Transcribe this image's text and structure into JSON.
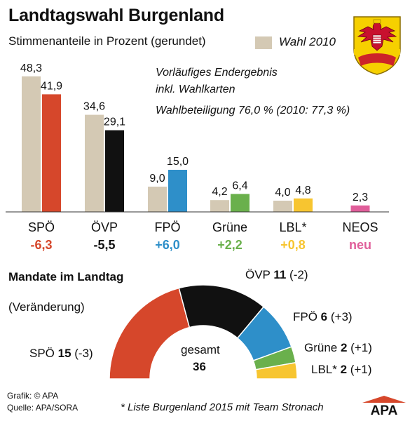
{
  "header": {
    "title": "Landtagswahl Burgenland",
    "subtitle": "Stimmenanteile in Prozent (gerundet)",
    "legend_2010": "Wahl 2010",
    "note_line1": "Vorläufiges Endergebnis",
    "note_line2": "inkl. Wahlkarten",
    "note_line3": "Wahlbeteiligung 76,0 % (2010: 77,3 %)"
  },
  "chart_data": [
    {
      "type": "bar",
      "title": "Landtagswahl Burgenland",
      "subtitle": "Stimmenanteile in Prozent (gerundet)",
      "categories": [
        "SPÖ",
        "ÖVP",
        "FPÖ",
        "Grüne",
        "LBL*",
        "NEOS"
      ],
      "series": [
        {
          "name": "Wahl 2010",
          "values": [
            48.3,
            34.6,
            9.0,
            4.2,
            4.0,
            null
          ],
          "labels": [
            "48,3",
            "34,6",
            "9,0",
            "4,2",
            "4,0",
            ""
          ],
          "color": "#d4c9b4"
        },
        {
          "values": [
            41.9,
            29.1,
            15.0,
            6.4,
            4.8,
            2.3
          ],
          "labels": [
            "41,9",
            "29,1",
            "15,0",
            "6,4",
            "4,8",
            "2,3"
          ],
          "colors": [
            "#d6472b",
            "#111111",
            "#2e8fc9",
            "#6ab04c",
            "#f7c530",
            "#e05e9a"
          ]
        }
      ],
      "changes": [
        "-6,3",
        "-5,5",
        "+6,0",
        "+2,2",
        "+0,8",
        "neu"
      ],
      "change_colors": [
        "#d6472b",
        "#111111",
        "#2e8fc9",
        "#6ab04c",
        "#f7c530",
        "#e05e9a"
      ],
      "ylim": [
        0,
        50
      ],
      "grid": false
    },
    {
      "type": "pie",
      "title": "Mandate im Landtag",
      "subtitle": "(Veränderung)",
      "total_label": "gesamt",
      "total": "36",
      "slices": [
        {
          "name": "SPÖ",
          "value": 15,
          "change": "(-3)",
          "color": "#d6472b"
        },
        {
          "name": "ÖVP",
          "value": 11,
          "change": "(-2)",
          "color": "#111111"
        },
        {
          "name": "FPÖ",
          "value": 6,
          "change": "(+3)",
          "color": "#2e8fc9"
        },
        {
          "name": "Grüne",
          "value": 2,
          "change": "(+1)",
          "color": "#6ab04c"
        },
        {
          "name": "LBL*",
          "value": 2,
          "change": "(+1)",
          "color": "#f7c530"
        }
      ]
    }
  ],
  "footer": {
    "credit_grafik": "Grafik: © APA",
    "credit_quelle": "Quelle: APA/SORA",
    "footnote": "* Liste Burgenland 2015 mit Team Stronach",
    "logo_text": "APA"
  }
}
